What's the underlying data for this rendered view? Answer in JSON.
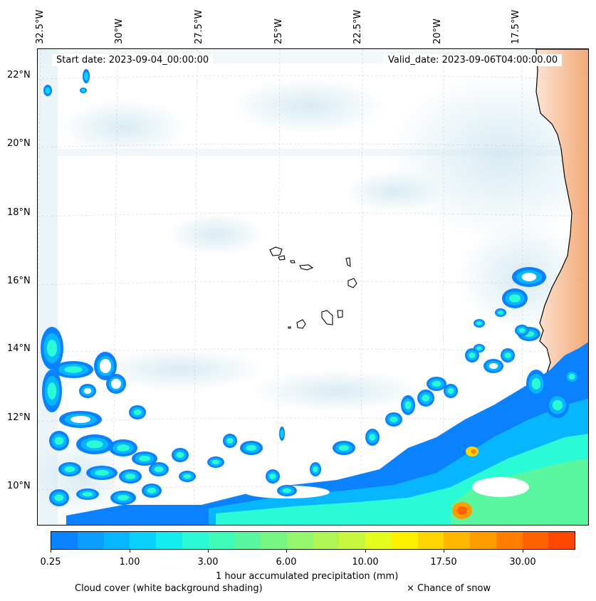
{
  "map": {
    "start_date": "Start date: 2023-09-04_00:00:00",
    "valid_date": "Valid_date: 2023-09-06T04:00:00.00",
    "lon_labels": [
      "32.5°W",
      "30°W",
      "27.5°W",
      "25°W",
      "22.5°W",
      "20°W",
      "17.5°W"
    ],
    "lat_labels": [
      "22°N",
      "20°N",
      "18°N",
      "16°N",
      "14°N",
      "12°N",
      "10°N"
    ],
    "land_color": "#f6c7a5",
    "coast_color": "#000000"
  },
  "colorbar": {
    "colors": [
      "#0a82ff",
      "#0b9eff",
      "#08b6ff",
      "#0ad2ff",
      "#14ecf0",
      "#2afad6",
      "#3ffcbb",
      "#5af7a0",
      "#77f585",
      "#93f66c",
      "#aff655",
      "#c8f73f",
      "#e4fb1e",
      "#fff000",
      "#ffd400",
      "#ffb800",
      "#ff9c00",
      "#ff7e00",
      "#ff6200",
      "#ff4600"
    ],
    "tick_labels": [
      "0.25",
      "1.00",
      "3.00",
      "6.00",
      "10.00",
      "17.50",
      "30.00"
    ],
    "label": "1 hour accumulated precipitation (mm)"
  },
  "footer": {
    "cloud_cover": "Cloud cover (white background shading)",
    "snow": "× Chance of snow"
  }
}
